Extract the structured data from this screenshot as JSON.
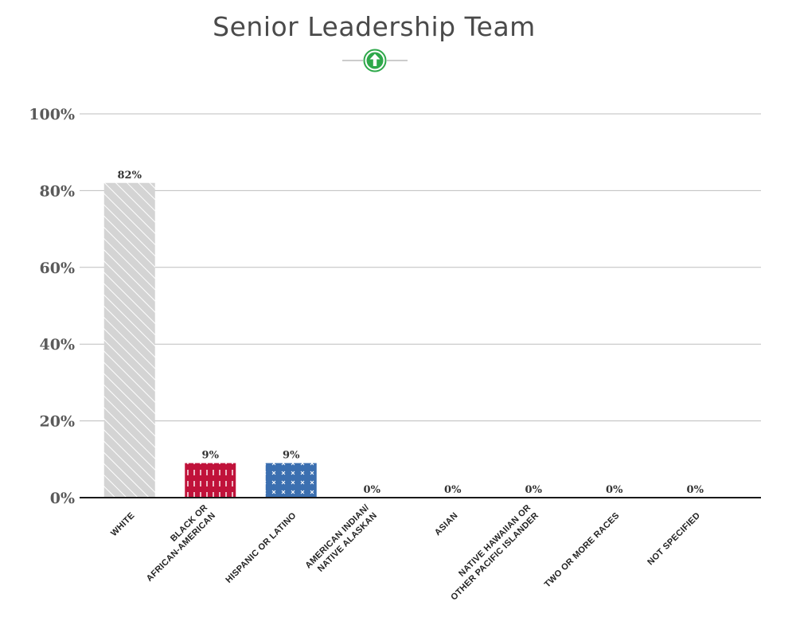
{
  "chart_data": {
    "type": "bar",
    "title": "Senior Leadership Team",
    "categories": [
      [
        "WHITE"
      ],
      [
        "BLACK OR",
        "AFRICAN-AMERICAN"
      ],
      [
        "HISPANIC OR LATINO"
      ],
      [
        "AMERICAN INDIAN/",
        "NATIVE ALASKAN"
      ],
      [
        "ASIAN"
      ],
      [
        "NATIVE HAWAIIAN OR",
        "OTHER PACIFIC ISLANDER"
      ],
      [
        "TWO OR MORE RACES"
      ],
      [
        "NOT SPECIFIED"
      ]
    ],
    "values": [
      82,
      9,
      9,
      0,
      0,
      0,
      0,
      0
    ],
    "value_labels": [
      "82%",
      "9%",
      "9%",
      "0%",
      "0%",
      "0%",
      "0%",
      "0%"
    ],
    "ylim": [
      0,
      100
    ],
    "yticks": [
      0,
      20,
      40,
      60,
      80,
      100
    ],
    "ytick_labels": [
      "0%",
      "20%",
      "40%",
      "60%",
      "80%",
      "100%"
    ],
    "grid": true,
    "bar_styles": [
      {
        "fill": "#d4d4d4",
        "pattern": "diagonal-stripes",
        "pattern_color": "#ffffff"
      },
      {
        "fill": "#c0123a",
        "pattern": "dashes",
        "pattern_color": "#ffffff"
      },
      {
        "fill": "#3b6fb0",
        "pattern": "crosses",
        "pattern_color": "#ffffff"
      },
      {
        "fill": "#999999",
        "pattern": "none"
      },
      {
        "fill": "#999999",
        "pattern": "none"
      },
      {
        "fill": "#999999",
        "pattern": "none"
      },
      {
        "fill": "#999999",
        "pattern": "none"
      },
      {
        "fill": "#999999",
        "pattern": "none"
      }
    ]
  },
  "header": {
    "ornament_icon": "green-up-arrow-icon",
    "ornament_color": "#2ea84a"
  }
}
